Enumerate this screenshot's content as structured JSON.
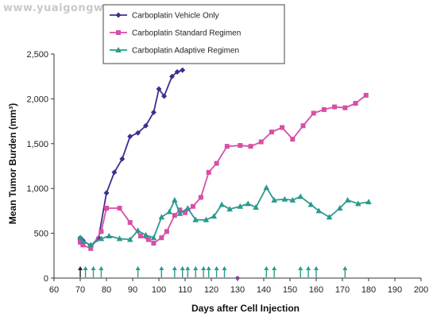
{
  "watermark": "www.yuaigongwu.com",
  "chart_data": {
    "type": "line",
    "title": "",
    "xlabel": "Days after Cell Injection",
    "ylabel": "Mean Tumor Burden (mm³)",
    "xlim": [
      60,
      200
    ],
    "ylim": [
      0,
      2500
    ],
    "xticks": [
      60,
      70,
      80,
      90,
      100,
      110,
      120,
      130,
      140,
      150,
      160,
      170,
      180,
      190,
      200
    ],
    "yticks": [
      0,
      500,
      1000,
      1500,
      2000,
      2500
    ],
    "ytick_labels": [
      "0",
      "500",
      "1,000",
      "1,500",
      "2,000",
      "2,500"
    ],
    "grid": false,
    "legend_position": "top-center",
    "series": [
      {
        "name": "Carboplatin Vehicle Only",
        "color": "#3c2f8f",
        "marker": "diamond",
        "x": [
          70,
          71,
          74,
          77,
          80,
          83,
          86,
          89,
          92,
          95,
          98,
          100,
          102,
          105,
          107,
          109
        ],
        "y": [
          450,
          420,
          360,
          450,
          950,
          1180,
          1330,
          1580,
          1620,
          1700,
          1850,
          2110,
          2030,
          2250,
          2300,
          2320
        ]
      },
      {
        "name": "Carboplatin Standard Regimen",
        "color": "#d74ea8",
        "marker": "square",
        "x": [
          70,
          71,
          74,
          78,
          80,
          85,
          89,
          93,
          96,
          98,
          101,
          103,
          106,
          108,
          110,
          113,
          116,
          119,
          122,
          126,
          131,
          135,
          139,
          143,
          147,
          151,
          155,
          159,
          163,
          167,
          171,
          175,
          179
        ],
        "y": [
          400,
          370,
          330,
          520,
          780,
          780,
          620,
          470,
          430,
          390,
          450,
          520,
          700,
          760,
          730,
          800,
          900,
          1180,
          1280,
          1470,
          1480,
          1470,
          1520,
          1630,
          1680,
          1550,
          1700,
          1840,
          1880,
          1910,
          1900,
          1950,
          2040
        ]
      },
      {
        "name": "Carboplatin Adaptive Regimen",
        "color": "#2a9a8e",
        "marker": "triangle",
        "x": [
          70,
          71,
          74,
          78,
          81,
          85,
          89,
          92,
          95,
          98,
          101,
          104,
          106,
          108,
          111,
          114,
          118,
          121,
          124,
          127,
          131,
          134,
          137,
          141,
          144,
          148,
          151,
          154,
          158,
          161,
          165,
          169,
          172,
          176,
          180
        ],
        "y": [
          450,
          410,
          370,
          440,
          470,
          440,
          430,
          530,
          480,
          450,
          680,
          740,
          870,
          720,
          780,
          650,
          650,
          690,
          820,
          770,
          800,
          830,
          790,
          1010,
          870,
          880,
          870,
          910,
          820,
          750,
          680,
          780,
          870,
          830,
          850
        ]
      }
    ],
    "annotations": [
      {
        "type": "dosing-arrow",
        "color": "#2a9a8e",
        "x": [
          72,
          75,
          78,
          92,
          101,
          106,
          109,
          111,
          114,
          117,
          119,
          122,
          125,
          141,
          144,
          154,
          157,
          160,
          171
        ]
      },
      {
        "type": "dosing-arrow",
        "color": "#222222",
        "x": [
          70
        ]
      },
      {
        "type": "point",
        "color": "#8a3fa0",
        "x": [
          130
        ],
        "y": [
          0
        ]
      }
    ]
  }
}
